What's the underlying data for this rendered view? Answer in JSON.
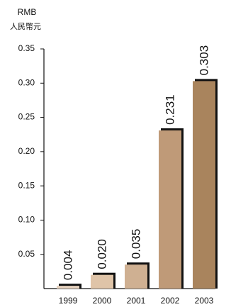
{
  "chart_data": {
    "type": "bar",
    "unit_line1": "RMB",
    "unit_line2": "人民幣元",
    "categories": [
      "1999",
      "2000",
      "2001",
      "2002",
      "2003"
    ],
    "values": [
      0.004,
      0.02,
      0.035,
      0.231,
      0.303
    ],
    "value_labels": [
      "0.004",
      "0.020",
      "0.035",
      "0.231",
      "0.303"
    ],
    "y_ticks": [
      0.05,
      0.1,
      0.15,
      0.2,
      0.25,
      0.3,
      0.35
    ],
    "y_tick_labels": [
      "0.05",
      "0.10",
      "0.15",
      "0.20",
      "0.25",
      "0.30",
      "0.35"
    ],
    "ylim": [
      0,
      0.35
    ],
    "bar_colors": [
      "#e6d2bf",
      "#dfc4a8",
      "#cfb092",
      "#bf9a78",
      "#a9845d"
    ],
    "grid": false,
    "legend": "none"
  }
}
